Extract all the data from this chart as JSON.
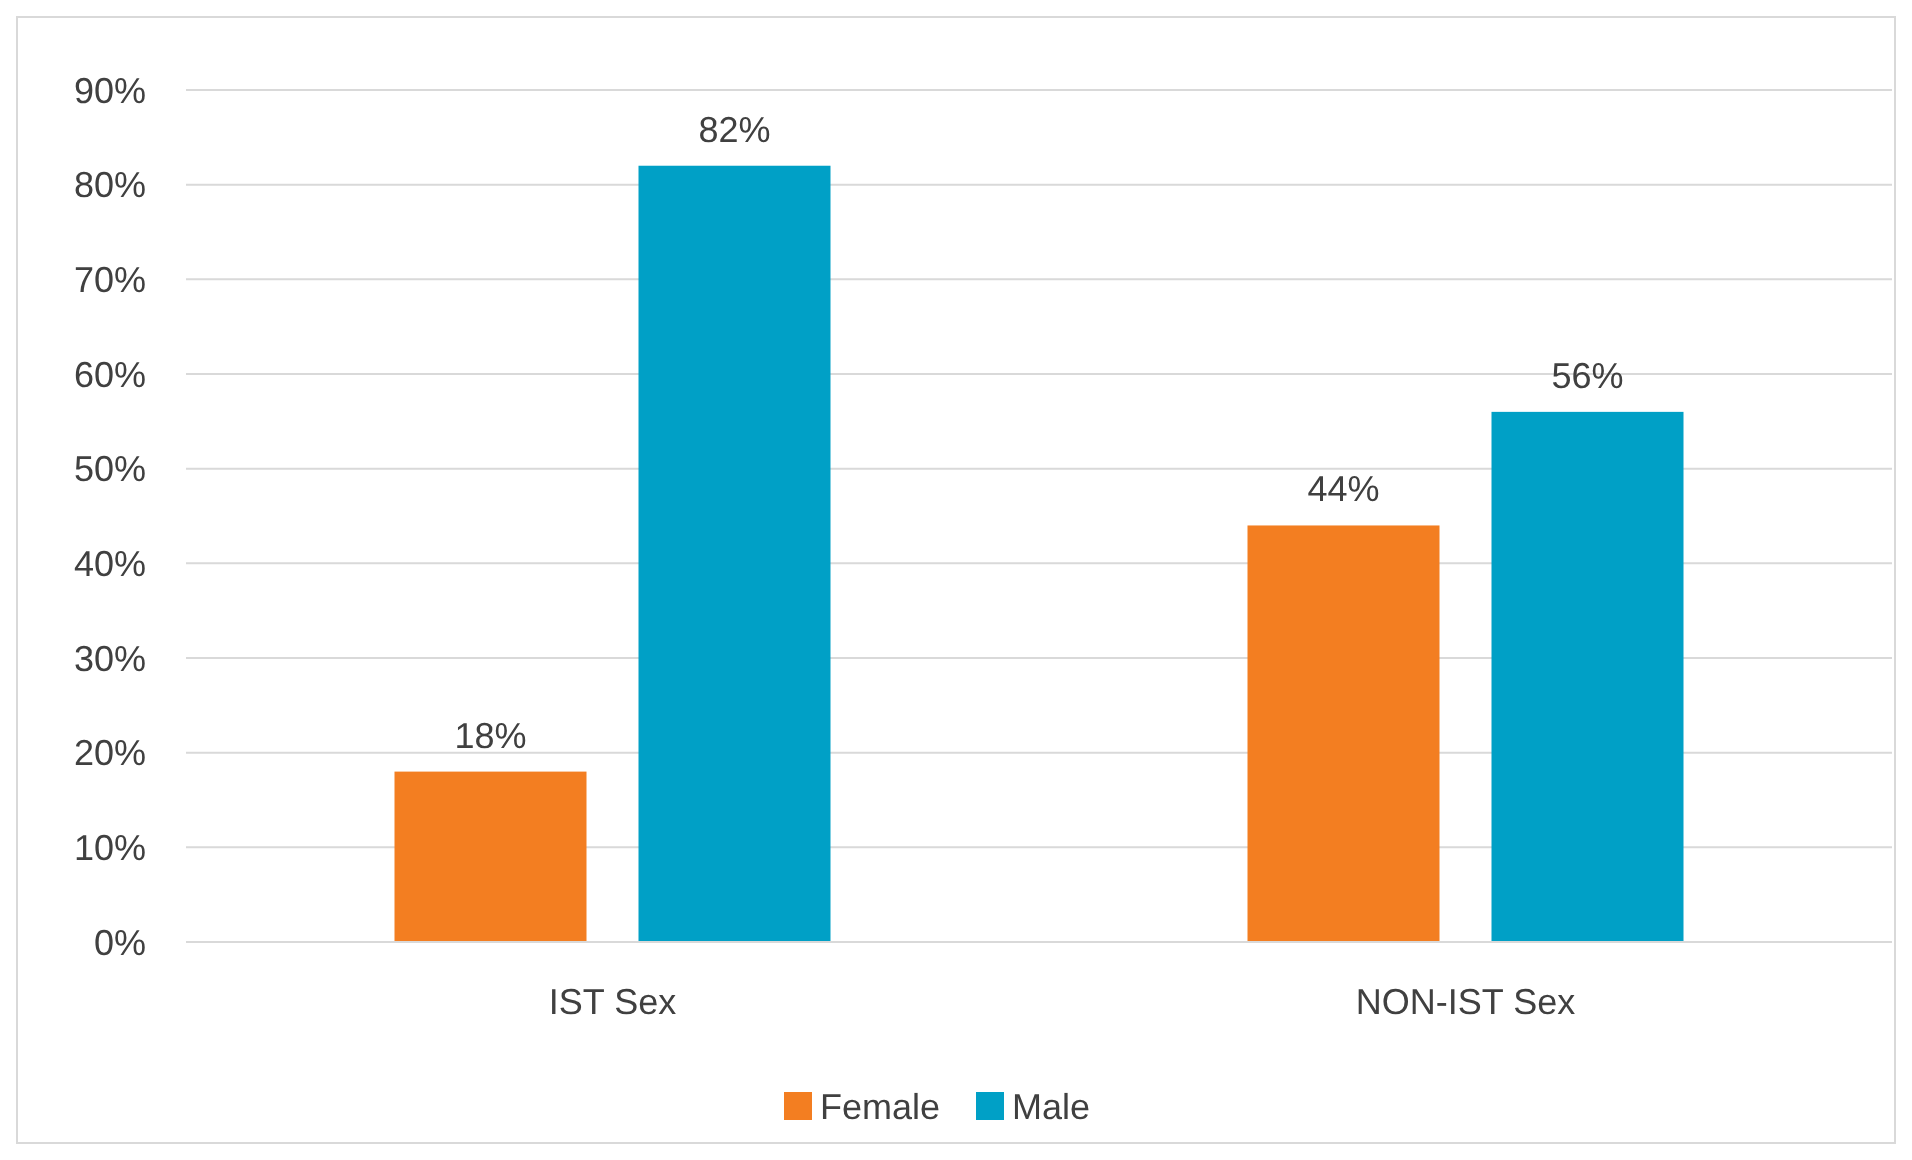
{
  "chart_data": {
    "type": "bar",
    "categories": [
      "IST Sex",
      "NON-IST Sex"
    ],
    "series": [
      {
        "name": "Female",
        "color": "#f37e21",
        "values": [
          18,
          44
        ],
        "value_labels": [
          "18%",
          "44%"
        ]
      },
      {
        "name": "Male",
        "color": "#00a0c6",
        "values": [
          82,
          56
        ],
        "value_labels": [
          "82%",
          "56%"
        ]
      }
    ],
    "ylim": [
      0,
      90
    ],
    "yticks": [
      {
        "value": 0,
        "label": "0%"
      },
      {
        "value": 10,
        "label": "10%"
      },
      {
        "value": 20,
        "label": "20%"
      },
      {
        "value": 30,
        "label": "30%"
      },
      {
        "value": 40,
        "label": "40%"
      },
      {
        "value": 50,
        "label": "50%"
      },
      {
        "value": 60,
        "label": "60%"
      },
      {
        "value": 70,
        "label": "70%"
      },
      {
        "value": 80,
        "label": "80%"
      },
      {
        "value": 90,
        "label": "90%"
      }
    ],
    "grid": "y",
    "legend": "bottom"
  }
}
